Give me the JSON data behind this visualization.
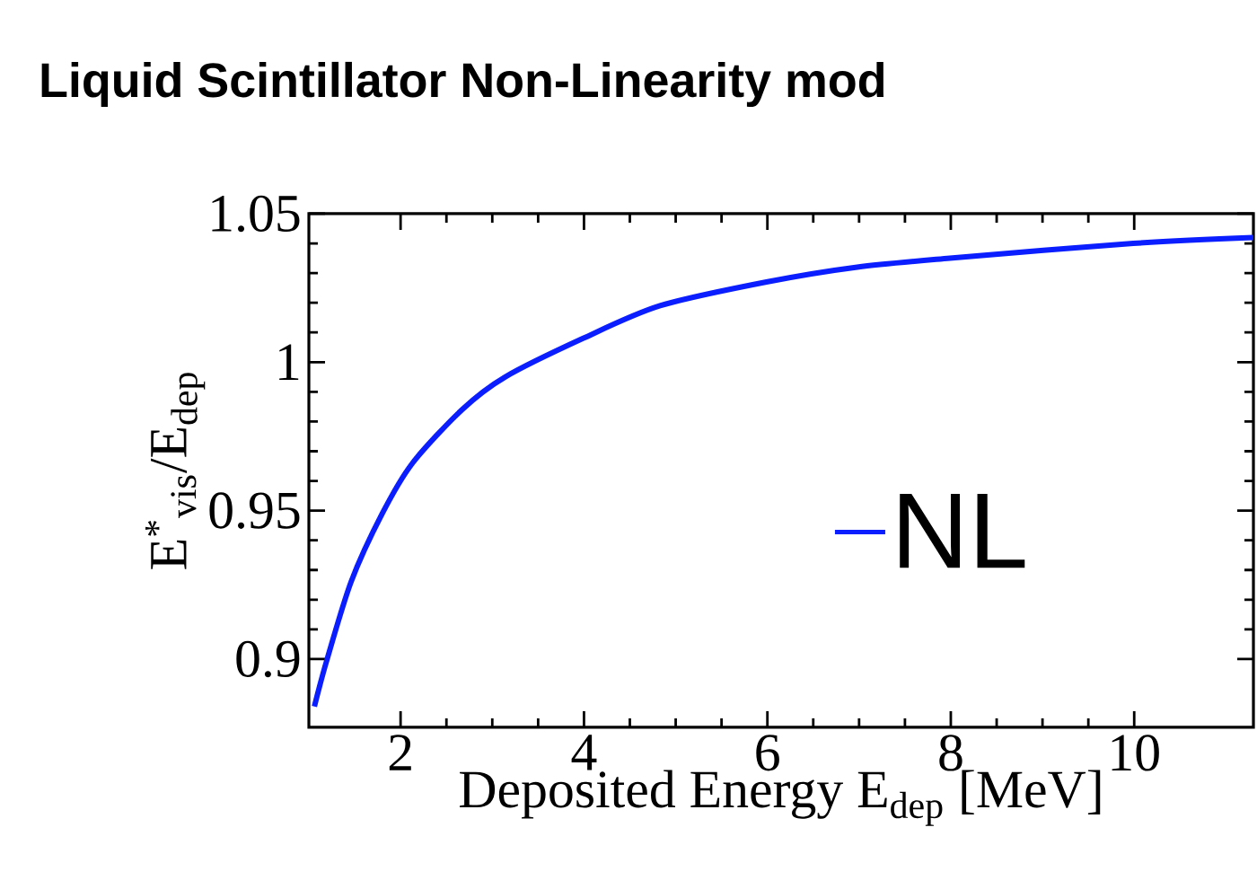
{
  "chart_data": {
    "type": "line",
    "title": "Liquid Scintillator Non-Linearity mod",
    "xlabel": "Deposited Energy E$_{dep}$ [MeV]",
    "ylabel": "E$^{*}$$_{vis}$/E$_{dep}$",
    "xlim": [
      1,
      11.3
    ],
    "ylim": [
      0.877,
      1.05
    ],
    "xticks": [
      2,
      4,
      6,
      8,
      10
    ],
    "yticks": [
      0.9,
      0.95,
      1,
      1.05
    ],
    "grid": false,
    "legend": "right",
    "marker": "none",
    "line_style": "solid",
    "series": [
      {
        "name": "NL",
        "color": "#0a1eff",
        "x": [
          1.06,
          1.19,
          1.46,
          1.8,
          2.13,
          2.67,
          3.14,
          3.99,
          4.83,
          5.99,
          6.98,
          7.99,
          9.99,
          11.3
        ],
        "values": [
          0.884,
          0.899,
          0.926,
          0.949,
          0.966,
          0.984,
          0.995,
          1.008,
          1.019,
          1.027,
          1.032,
          1.035,
          1.04,
          1.042
        ]
      }
    ]
  }
}
